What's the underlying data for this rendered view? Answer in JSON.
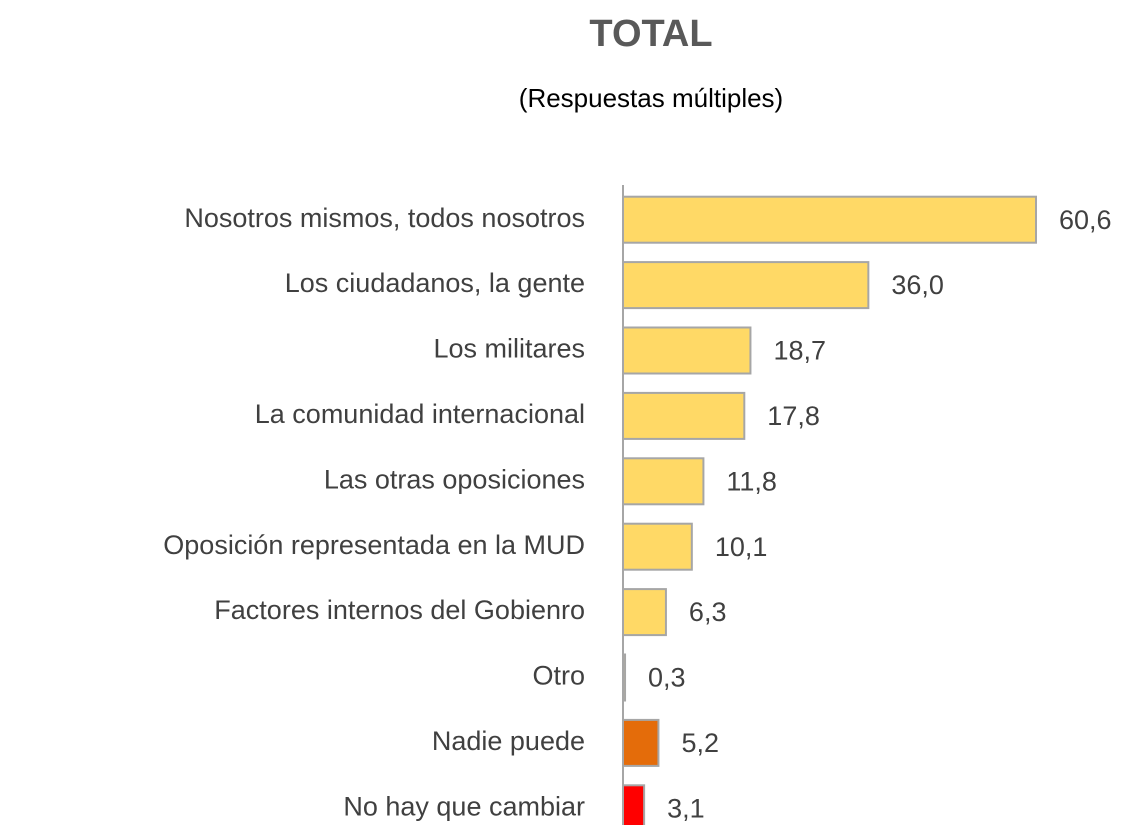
{
  "chart_data": {
    "type": "barh",
    "title": "TOTAL",
    "subtitle": "(Respuestas múltiples)",
    "categories": [
      "Nosotros mismos, todos nosotros",
      "Los ciudadanos, la gente",
      "Los militares",
      "La comunidad internacional",
      "Las otras oposiciones",
      "Oposición representada en la MUD",
      "Factores internos del Gobienro",
      "Otro",
      "Nadie puede",
      "No hay que cambiar"
    ],
    "values": [
      60.6,
      36.0,
      18.7,
      17.8,
      11.8,
      10.1,
      6.3,
      0.3,
      5.2,
      3.1
    ],
    "value_labels": [
      "60,6",
      "36,0",
      "18,7",
      "17,8",
      "11,8",
      "10,1",
      "6,3",
      "0,3",
      "5,2",
      "3,1"
    ],
    "colors": [
      "#FFD966",
      "#FFD966",
      "#FFD966",
      "#FFD966",
      "#FFD966",
      "#FFD966",
      "#FFD966",
      "#FFD966",
      "#E46C0A",
      "#FF0000"
    ]
  }
}
